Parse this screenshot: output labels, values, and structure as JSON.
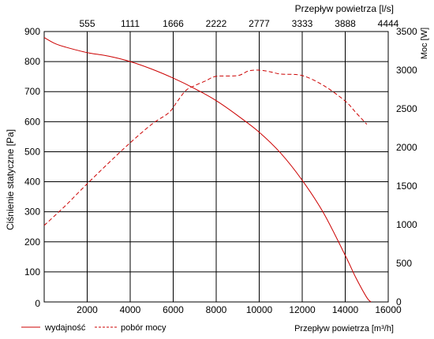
{
  "chart_data": {
    "type": "line",
    "title": "",
    "xlabel": "Przepływ powietrza [m³/h]",
    "x2label": "Przepływ powietrza [l/s]",
    "ylabel": "Ciśnienie statyczne [Pa]",
    "y2label": "Moc [W]",
    "xlim": [
      0,
      16000
    ],
    "ylim": [
      0,
      900
    ],
    "y2lim": [
      0,
      3500
    ],
    "x_ticks": [
      "2000",
      "4000",
      "6000",
      "8000",
      "10000",
      "12000",
      "14000",
      "16000"
    ],
    "x2_ticks": [
      "555",
      "1111",
      "1666",
      "2222",
      "2777",
      "3333",
      "3888",
      "4444"
    ],
    "y_ticks": [
      "100",
      "200",
      "300",
      "400",
      "500",
      "600",
      "700",
      "800",
      "900"
    ],
    "y2_ticks": [
      "500",
      "1000",
      "1500",
      "2000",
      "2500",
      "3000",
      "3500"
    ],
    "origin_label": "0",
    "y2_origin_label": "0",
    "grid": true,
    "legend_position": "bottom-left",
    "color": "#cc0000",
    "series": [
      {
        "name": "wydajność",
        "axis": "left",
        "style": "solid",
        "x": [
          0,
          500,
          1000,
          2000,
          3000,
          4000,
          5000,
          6000,
          7000,
          8000,
          9000,
          10000,
          11000,
          12000,
          13000,
          14000,
          14500,
          15000,
          15200
        ],
        "y": [
          880,
          860,
          848,
          830,
          818,
          800,
          775,
          745,
          710,
          670,
          620,
          565,
          495,
          405,
          295,
          155,
          80,
          15,
          0
        ]
      },
      {
        "name": "pobór mocy",
        "axis": "right",
        "style": "dashed",
        "x": [
          0,
          1000,
          2000,
          3000,
          4000,
          5000,
          5800,
          6200,
          6600,
          7000,
          7500,
          8000,
          9000,
          9500,
          10000,
          10500,
          11000,
          12000,
          13000,
          14000,
          14500,
          15000
        ],
        "y": [
          990,
          1250,
          1530,
          1800,
          2060,
          2300,
          2450,
          2600,
          2740,
          2800,
          2860,
          2920,
          2930,
          2990,
          3000,
          2980,
          2950,
          2930,
          2800,
          2600,
          2450,
          2300
        ]
      }
    ]
  }
}
